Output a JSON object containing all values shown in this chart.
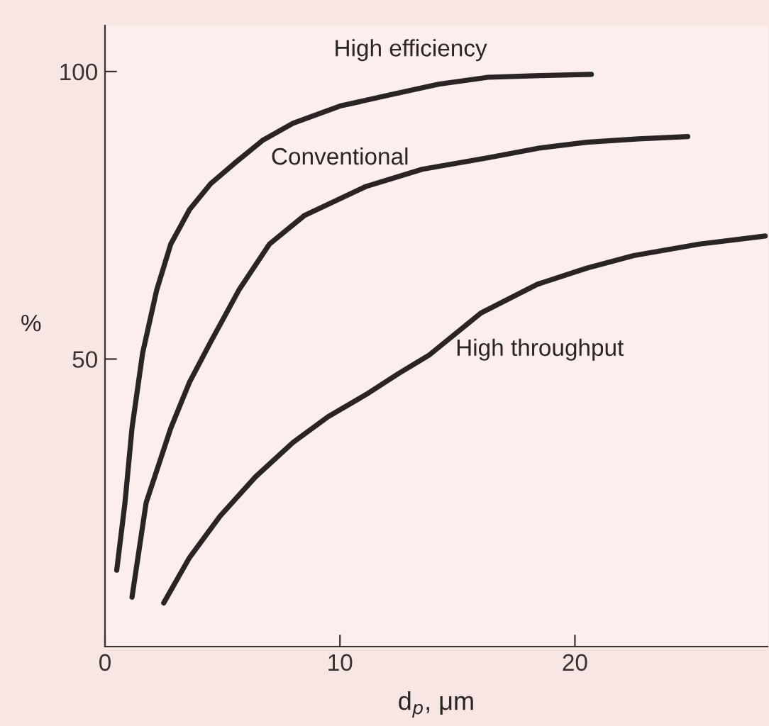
{
  "chart_data": {
    "type": "line",
    "xlabel": "d$_{p}$, μm",
    "ylabel": "%",
    "xlim": [
      0,
      28.2
    ],
    "ylim": [
      0,
      108
    ],
    "xticks": [
      0,
      10,
      20
    ],
    "yticks": [
      50,
      100
    ],
    "grid": false,
    "legend": false,
    "marker": "none",
    "line_style": "solid",
    "series": [
      {
        "name": "High efficiency",
        "color": "#2b2424",
        "x": [
          0.5,
          0.85,
          1.15,
          1.6,
          2.2,
          2.8,
          3.6,
          4.5,
          5.5,
          6.7,
          8,
          10,
          12.2,
          14.2,
          16.3,
          18.5,
          20.7
        ],
        "values": [
          13.3,
          25,
          38,
          51,
          62,
          70,
          76,
          80.5,
          84,
          88,
          91,
          94,
          96,
          97.8,
          99,
          99.3,
          99.5
        ]
      },
      {
        "name": "Conventional",
        "color": "#2b2424",
        "x": [
          1.15,
          1.75,
          2.8,
          3.6,
          4.5,
          5.7,
          7,
          8.5,
          11.1,
          13.5,
          16.3,
          18.5,
          20.5,
          22.7,
          24.8
        ],
        "values": [
          8.6,
          25,
          38,
          46,
          53,
          62,
          70,
          75,
          80,
          83,
          85,
          86.7,
          87.7,
          88.3,
          88.7
        ]
      },
      {
        "name": "High throughput",
        "color": "#2b2424",
        "x": [
          2.5,
          3.6,
          4.9,
          6.4,
          8,
          9.5,
          11.1,
          12.5,
          13.8,
          16,
          18.4,
          20.5,
          22.5,
          25.3,
          28.1
        ],
        "values": [
          7.6,
          15.5,
          22.7,
          29.5,
          35.5,
          40,
          43.8,
          47.5,
          50.7,
          58,
          63,
          65.8,
          68,
          70,
          71.4
        ]
      }
    ]
  }
}
